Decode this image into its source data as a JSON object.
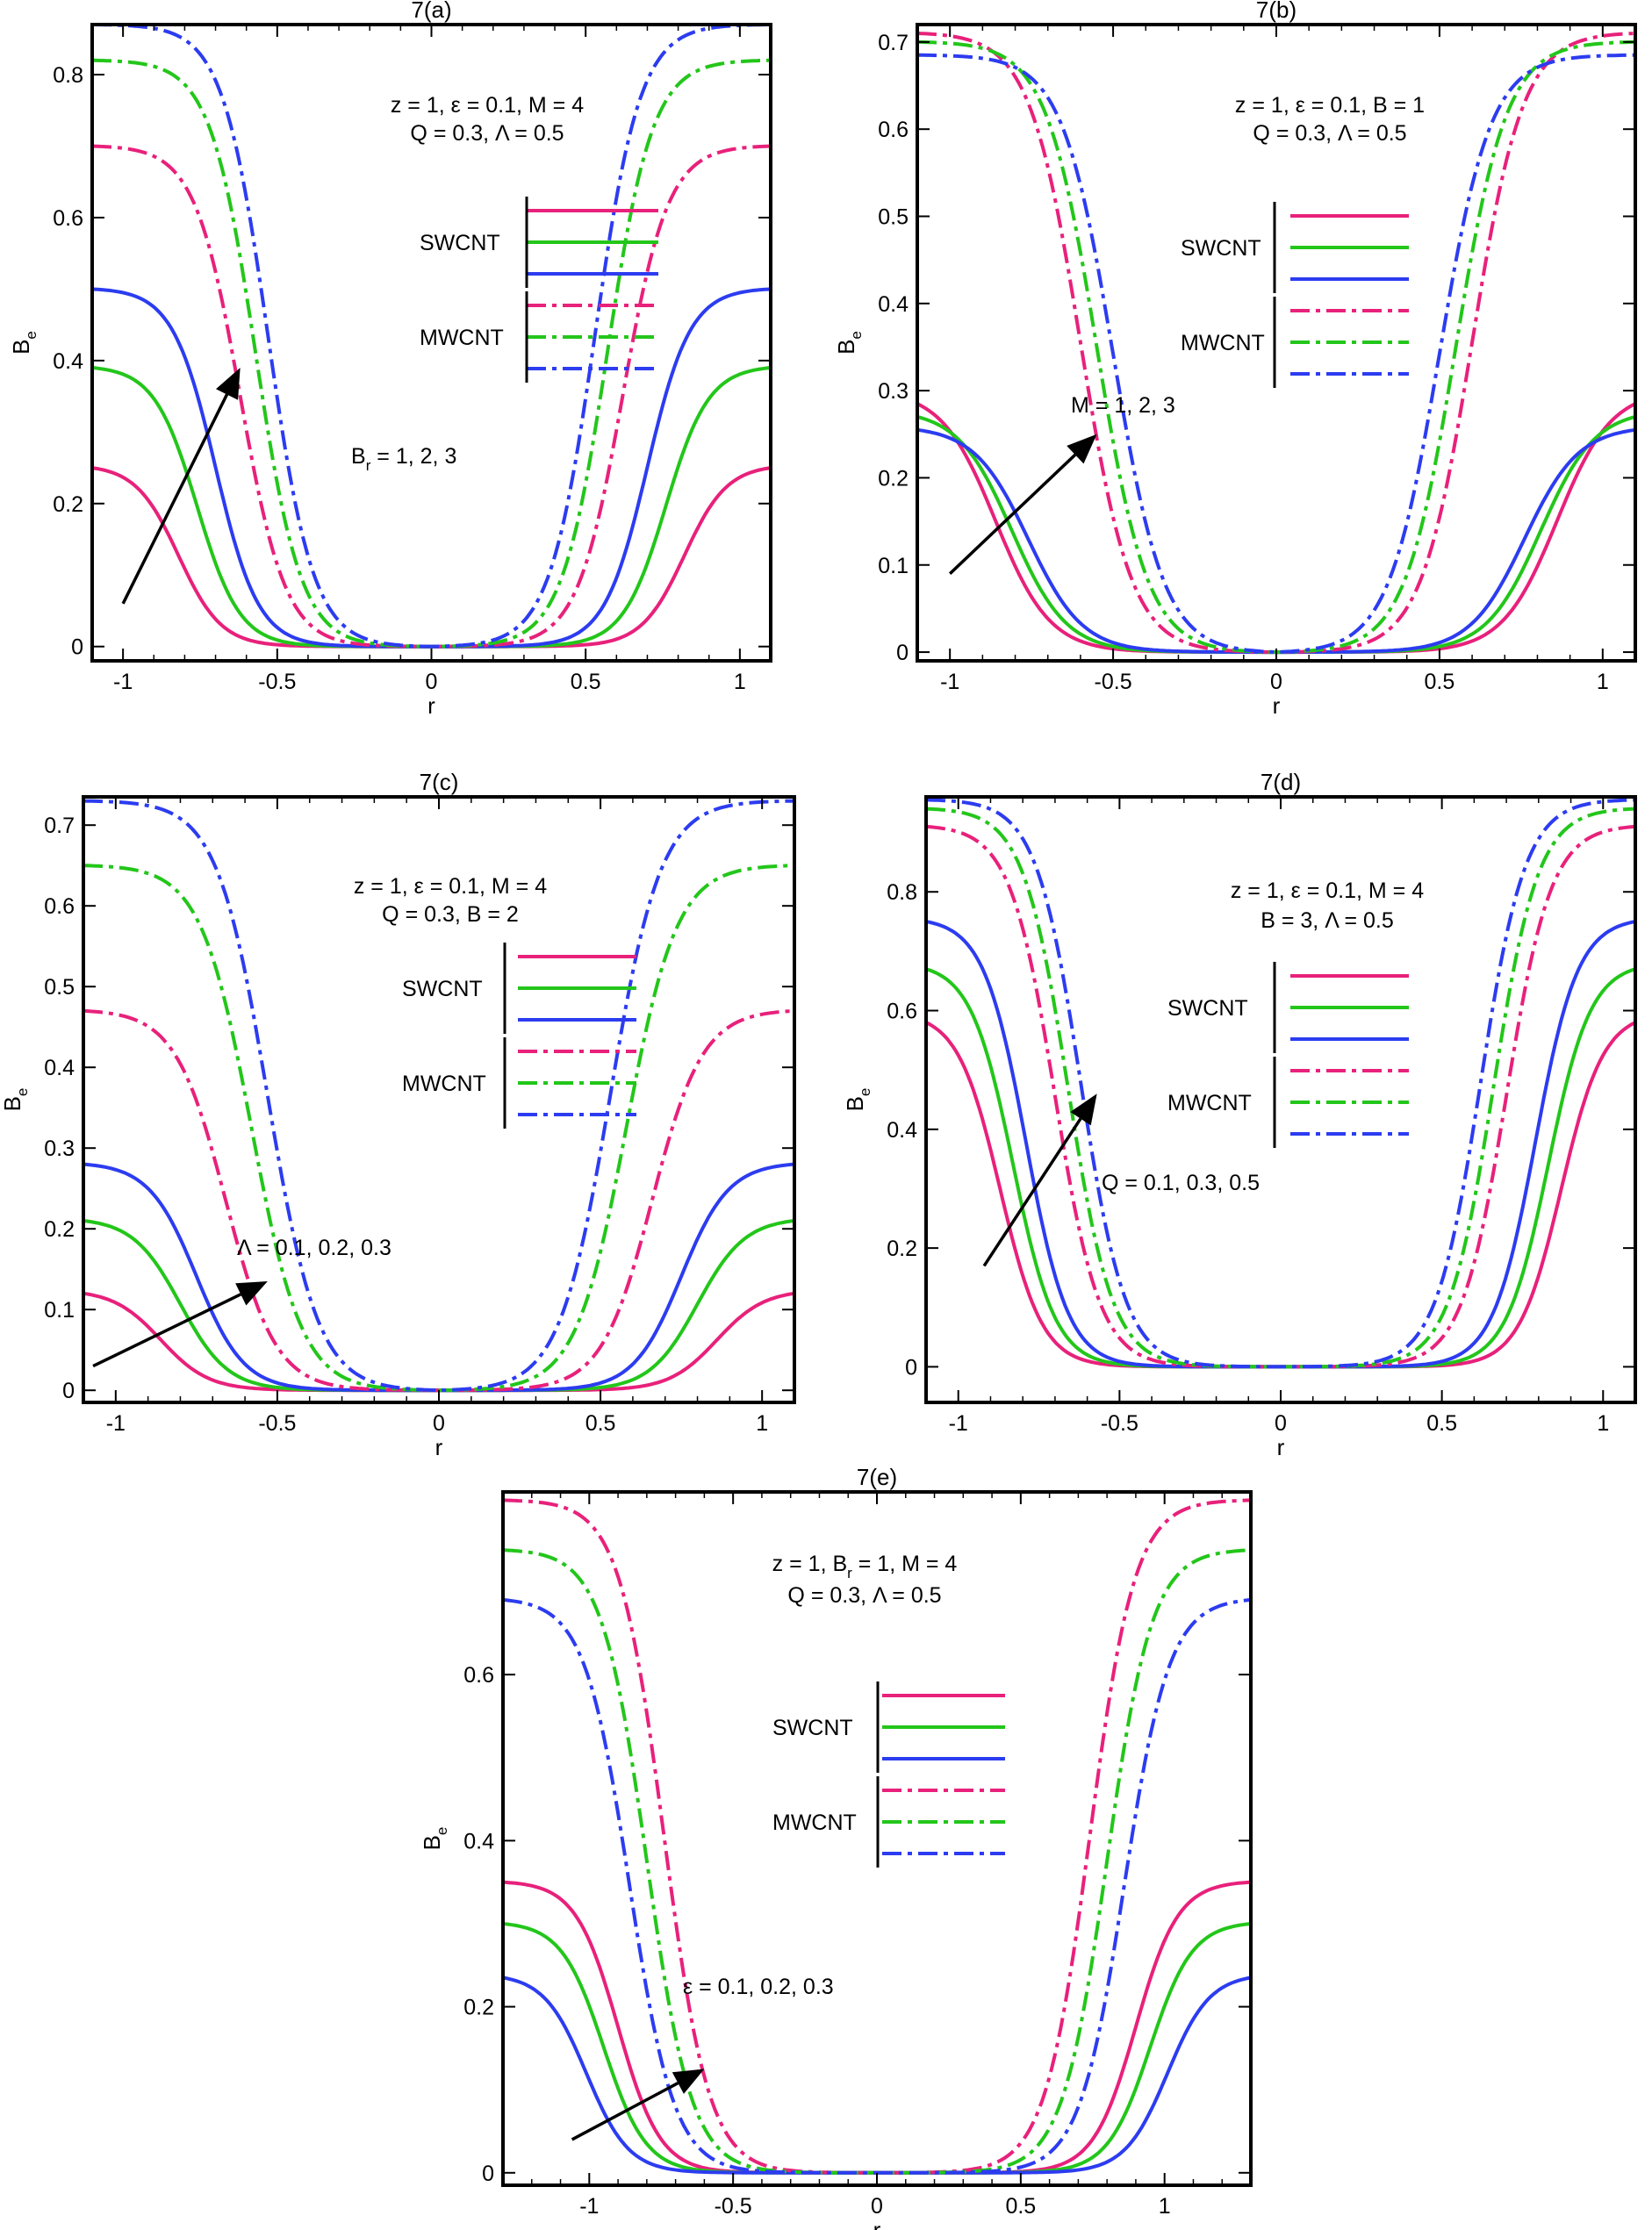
{
  "figure": {
    "colors": {
      "pink": "#e8217b",
      "green": "#23c61a",
      "blue": "#2c3cf0",
      "black": "#000000"
    },
    "legend_labels": [
      "SWCNT",
      "MWCNT"
    ]
  },
  "chart_data": [
    {
      "type": "line",
      "title": "7(a)",
      "xlabel": "r",
      "ylabel": "B",
      "ylabel_sub": "e",
      "xlim": [
        -1.1,
        1.1
      ],
      "ylim": [
        -0.02,
        0.87
      ],
      "xticks": [
        "-1",
        "-0.5",
        "0",
        "0.5",
        "1"
      ],
      "xtick_values": [
        -1,
        -0.5,
        0,
        0.5,
        1
      ],
      "yticks": [
        "0",
        "0.2",
        "0.4",
        "0.6",
        "0.8"
      ],
      "ytick_values": [
        0,
        0.2,
        0.4,
        0.6,
        0.8
      ],
      "annotation_lines": [
        "z = 1, ε = 0.1, M = 4",
        "Q = 0.3, Λ = 0.5"
      ],
      "arrow_label": "B",
      "arrow_label_sub": "r",
      "arrow_label_rest": " = 1, 2, 3",
      "arrow": {
        "from": [
          -1.0,
          0.06
        ],
        "to": [
          -0.62,
          0.39
        ]
      },
      "series": [
        {
          "name": "SWCNT",
          "group": "SWCNT",
          "color": "pink",
          "edge_value": 0.25,
          "r0": 0.82,
          "k": 3.6
        },
        {
          "name": "SWCNT",
          "group": "SWCNT",
          "color": "green",
          "edge_value": 0.39,
          "r0": 0.76,
          "k": 3.6
        },
        {
          "name": "SWCNT",
          "group": "SWCNT",
          "color": "blue",
          "edge_value": 0.5,
          "r0": 0.7,
          "k": 3.6
        },
        {
          "name": "MWCNT",
          "group": "MWCNT",
          "color": "pink",
          "edge_value": 0.7,
          "r0": 0.62,
          "k": 3.4
        },
        {
          "name": "MWCNT",
          "group": "MWCNT",
          "color": "green",
          "edge_value": 0.82,
          "r0": 0.57,
          "k": 3.4
        },
        {
          "name": "MWCNT",
          "group": "MWCNT",
          "color": "blue",
          "edge_value": 0.87,
          "r0": 0.53,
          "k": 3.4
        }
      ]
    },
    {
      "type": "line",
      "title": "7(b)",
      "xlabel": "r",
      "ylabel": "B",
      "ylabel_sub": "e",
      "xlim": [
        -1.1,
        1.1
      ],
      "ylim": [
        -0.01,
        0.72
      ],
      "xticks": [
        "-1",
        "-0.5",
        "0",
        "0.5",
        "1"
      ],
      "xtick_values": [
        -1,
        -0.5,
        0,
        0.5,
        1
      ],
      "yticks": [
        "0",
        "0.1",
        "0.2",
        "0.3",
        "0.4",
        "0.5",
        "0.6",
        "0.7"
      ],
      "ytick_values": [
        0,
        0.1,
        0.2,
        0.3,
        0.4,
        0.5,
        0.6,
        0.7
      ],
      "annotation_lines": [
        "z = 1, ε = 0.1, B = 1",
        "Q = 0.3, Λ = 0.5"
      ],
      "arrow_label": "M = 1, 2, 3",
      "arrow_label_sub": "",
      "arrow_label_rest": "",
      "arrow": {
        "from": [
          -1.0,
          0.09
        ],
        "to": [
          -0.55,
          0.25
        ]
      },
      "series": [
        {
          "name": "SWCNT",
          "group": "SWCNT",
          "color": "pink",
          "edge_value": 0.285,
          "r0": 0.86,
          "k": 3.0
        },
        {
          "name": "SWCNT",
          "group": "SWCNT",
          "color": "green",
          "edge_value": 0.27,
          "r0": 0.81,
          "k": 3.0
        },
        {
          "name": "SWCNT",
          "group": "SWCNT",
          "color": "blue",
          "edge_value": 0.255,
          "r0": 0.76,
          "k": 3.0
        },
        {
          "name": "MWCNT",
          "group": "MWCNT",
          "color": "pink",
          "edge_value": 0.71,
          "r0": 0.6,
          "k": 3.2
        },
        {
          "name": "MWCNT",
          "group": "MWCNT",
          "color": "green",
          "edge_value": 0.7,
          "r0": 0.55,
          "k": 3.2
        },
        {
          "name": "MWCNT",
          "group": "MWCNT",
          "color": "blue",
          "edge_value": 0.685,
          "r0": 0.5,
          "k": 3.2
        }
      ]
    },
    {
      "type": "line",
      "title": "7(c)",
      "xlabel": "r",
      "ylabel": "B",
      "ylabel_sub": "e",
      "xlim": [
        -1.1,
        1.1
      ],
      "ylim": [
        -0.015,
        0.735
      ],
      "xticks": [
        "-1",
        "-0.5",
        "0",
        "0.5",
        "1"
      ],
      "xtick_values": [
        -1,
        -0.5,
        0,
        0.5,
        1
      ],
      "yticks": [
        "0",
        "0.1",
        "0.2",
        "0.3",
        "0.4",
        "0.5",
        "0.6",
        "0.7"
      ],
      "ytick_values": [
        0,
        0.1,
        0.2,
        0.3,
        0.4,
        0.5,
        0.6,
        0.7
      ],
      "annotation_lines": [
        "z = 1, ε = 0.1, M = 4",
        "Q = 0.3, B = 2"
      ],
      "arrow_label": "Λ = 0.1, 0.2, 0.3",
      "arrow_label_sub": "",
      "arrow_label_rest": "",
      "arrow": {
        "from": [
          -1.07,
          0.03
        ],
        "to": [
          -0.53,
          0.135
        ]
      },
      "series": [
        {
          "name": "SWCNT",
          "group": "SWCNT",
          "color": "pink",
          "edge_value": 0.12,
          "r0": 0.86,
          "k": 3.4
        },
        {
          "name": "SWCNT",
          "group": "SWCNT",
          "color": "green",
          "edge_value": 0.21,
          "r0": 0.8,
          "k": 3.4
        },
        {
          "name": "SWCNT",
          "group": "SWCNT",
          "color": "blue",
          "edge_value": 0.28,
          "r0": 0.75,
          "k": 3.4
        },
        {
          "name": "MWCNT",
          "group": "MWCNT",
          "color": "pink",
          "edge_value": 0.47,
          "r0": 0.66,
          "k": 3.2
        },
        {
          "name": "MWCNT",
          "group": "MWCNT",
          "color": "green",
          "edge_value": 0.65,
          "r0": 0.58,
          "k": 3.2
        },
        {
          "name": "MWCNT",
          "group": "MWCNT",
          "color": "blue",
          "edge_value": 0.73,
          "r0": 0.53,
          "k": 3.2
        }
      ]
    },
    {
      "type": "line",
      "title": "7(d)",
      "xlabel": "r",
      "ylabel": "B",
      "ylabel_sub": "e",
      "xlim": [
        -1.1,
        1.1
      ],
      "ylim": [
        -0.06,
        0.96
      ],
      "xticks": [
        "-1",
        "-0.5",
        "0",
        "0.5",
        "1"
      ],
      "xtick_values": [
        -1,
        -0.5,
        0,
        0.5,
        1
      ],
      "yticks": [
        "0",
        "0.2",
        "0.4",
        "0.6",
        "0.8"
      ],
      "ytick_values": [
        0,
        0.2,
        0.4,
        0.6,
        0.8
      ],
      "annotation_lines": [
        "z = 1, ε = 0.1, M = 4",
        "B = 3, Λ = 0.5"
      ],
      "arrow_label": "Q = 0.1, 0.3, 0.5",
      "arrow_label_sub": "",
      "arrow_label_rest": "",
      "arrow": {
        "from": [
          -0.92,
          0.17
        ],
        "to": [
          -0.57,
          0.46
        ]
      },
      "series": [
        {
          "name": "SWCNT",
          "group": "SWCNT",
          "color": "pink",
          "edge_value": 0.58,
          "r0": 0.87,
          "k": 3.8
        },
        {
          "name": "SWCNT",
          "group": "SWCNT",
          "color": "green",
          "edge_value": 0.67,
          "r0": 0.83,
          "k": 3.8
        },
        {
          "name": "SWCNT",
          "group": "SWCNT",
          "color": "blue",
          "edge_value": 0.75,
          "r0": 0.79,
          "k": 3.8
        },
        {
          "name": "MWCNT",
          "group": "MWCNT",
          "color": "pink",
          "edge_value": 0.91,
          "r0": 0.7,
          "k": 3.6
        },
        {
          "name": "MWCNT",
          "group": "MWCNT",
          "color": "green",
          "edge_value": 0.94,
          "r0": 0.66,
          "k": 3.6
        },
        {
          "name": "MWCNT",
          "group": "MWCNT",
          "color": "blue",
          "edge_value": 0.955,
          "r0": 0.62,
          "k": 3.6
        }
      ]
    },
    {
      "type": "line",
      "title": "7(e)",
      "xlabel": "r",
      "ylabel": "B",
      "ylabel_sub": "e",
      "xlim": [
        -1.3,
        1.3
      ],
      "ylim": [
        -0.015,
        0.82
      ],
      "xticks": [
        "-1",
        "-0.5",
        "0",
        "0.5",
        "1"
      ],
      "xtick_values": [
        -1,
        -0.5,
        0,
        0.5,
        1
      ],
      "yticks": [
        "0",
        "0.2",
        "0.4",
        "0.6"
      ],
      "ytick_values": [
        0,
        0.2,
        0.4,
        0.6
      ],
      "annotation_lines": [
        "z = 1, B",
        "Q = 0.3, Λ = 0.5"
      ],
      "annotation_line1_sub": "r",
      "annotation_line1_rest": " = 1, M = 4",
      "arrow_label": "ε = 0.1, 0.2, 0.3",
      "arrow_label_sub": "",
      "arrow_label_rest": "",
      "arrow": {
        "from": [
          -1.06,
          0.04
        ],
        "to": [
          -0.6,
          0.125
        ]
      },
      "series": [
        {
          "name": "SWCNT",
          "group": "SWCNT",
          "color": "pink",
          "edge_value": 0.35,
          "r0": 0.9,
          "k": 3.4
        },
        {
          "name": "SWCNT",
          "group": "SWCNT",
          "color": "green",
          "edge_value": 0.3,
          "r0": 0.95,
          "k": 3.4
        },
        {
          "name": "SWCNT",
          "group": "SWCNT",
          "color": "blue",
          "edge_value": 0.235,
          "r0": 1.01,
          "k": 3.4
        },
        {
          "name": "MWCNT",
          "group": "MWCNT",
          "color": "pink",
          "edge_value": 0.81,
          "r0": 0.74,
          "k": 3.2
        },
        {
          "name": "MWCNT",
          "group": "MWCNT",
          "color": "green",
          "edge_value": 0.75,
          "r0": 0.8,
          "k": 3.2
        },
        {
          "name": "MWCNT",
          "group": "MWCNT",
          "color": "blue",
          "edge_value": 0.69,
          "r0": 0.86,
          "k": 3.2
        }
      ]
    }
  ]
}
